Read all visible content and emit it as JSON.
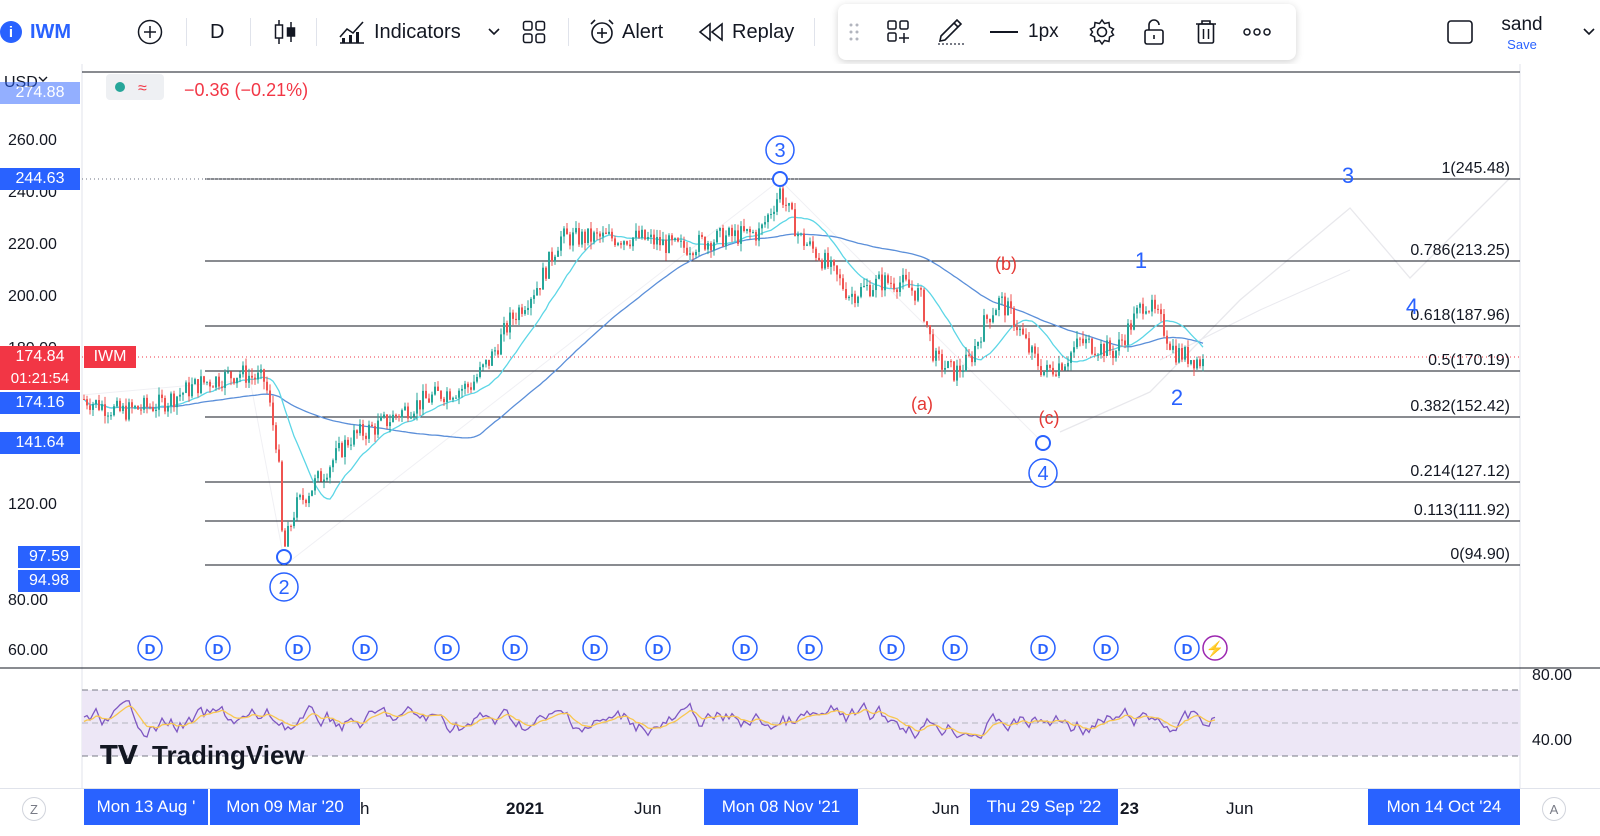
{
  "toolbar": {
    "symbol": "IWM",
    "interval": "D",
    "indicators_label": "Indicators",
    "alert_label": "Alert",
    "replay_label": "Replay",
    "line_width_label": "1px",
    "layout_name": "sand",
    "save_label": "Save"
  },
  "legend": {
    "change_text": "−0.36 (−0.21%)"
  },
  "price_axis": {
    "currency": "USD",
    "ticks": [
      "260.00",
      "240.00",
      "220.00",
      "200.00",
      "180.00",
      "120.00",
      "80.00",
      "60.00"
    ],
    "top_partial": "274.88"
  },
  "price_tags": {
    "high_244": "244.63",
    "last": "174.84",
    "symbol": "IWM",
    "countdown": "01:21:54",
    "tag_174": "174.16",
    "tag_141": "141.64",
    "tag_97": "97.59",
    "tag_94": "94.98"
  },
  "rsi_axis": {
    "ticks": [
      "80.00",
      "40.00"
    ]
  },
  "fib_levels": [
    {
      "ratio": "1",
      "price": "245.48",
      "label": "1(245.48)"
    },
    {
      "ratio": "0.786",
      "price": "213.25",
      "label": "0.786(213.25)"
    },
    {
      "ratio": "0.618",
      "price": "187.96",
      "label": "0.618(187.96)"
    },
    {
      "ratio": "0.5",
      "price": "170.19",
      "label": "0.5(170.19)"
    },
    {
      "ratio": "0.382",
      "price": "152.42",
      "label": "0.382(152.42)"
    },
    {
      "ratio": "0.214",
      "price": "127.12",
      "label": "0.214(127.12)"
    },
    {
      "ratio": "0.113",
      "price": "111.92",
      "label": "0.113(111.92)"
    },
    {
      "ratio": "0",
      "price": "94.90",
      "label": "0(94.90)"
    }
  ],
  "wave_labels": {
    "w2": "2",
    "w3": "3",
    "w4": "4",
    "a": "(a)",
    "b": "(b)",
    "c": "(c)",
    "minor_1": "1",
    "minor_2": "2",
    "minor_3": "3",
    "minor_4": "4"
  },
  "dividend_marker": "D",
  "time_axis": {
    "labels": [
      "2021",
      "Jun",
      "Jun",
      "23",
      "Jun"
    ],
    "partial": "h",
    "highlights": [
      "Mon 13 Aug '",
      "Mon 09 Mar '20",
      "Mon 08 Nov '21",
      "Thu 29 Sep '22",
      "Mon 14 Oct '24"
    ]
  },
  "watermark": "TradingView",
  "corner": {
    "left": "Z",
    "right": "A"
  },
  "colors": {
    "accent": "#2962ff",
    "price_tag": "#2962ff",
    "last_price": "#f23645",
    "ma_fast": "#5cd6e6",
    "ma_slow": "#5b8fd9",
    "wave_red": "#e53935",
    "rsi": "#7e57c2",
    "rsi_signal": "#f9c74f",
    "rsi_band": "#ede7f6"
  }
}
